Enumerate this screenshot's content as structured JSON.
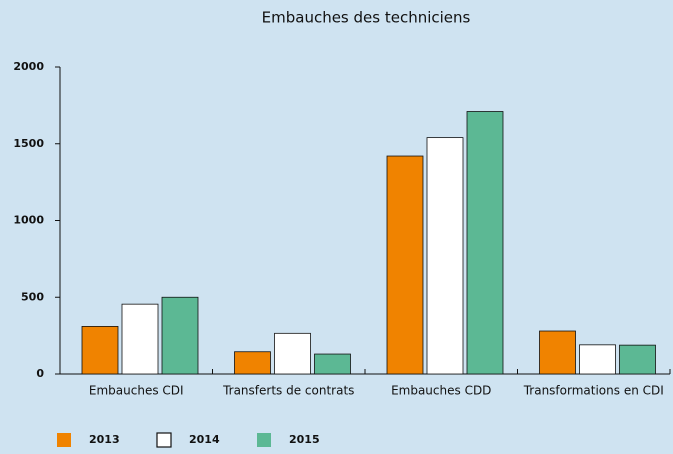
{
  "chart_data": {
    "type": "bar",
    "title": "Embauches des techniciens",
    "categories": [
      "Embauches CDI",
      "Transferts de contrats",
      "Embauches CDD",
      "Transformations en CDI"
    ],
    "series": [
      {
        "name": "2013",
        "color": "#f08300",
        "values": [
          310,
          145,
          1420,
          280
        ]
      },
      {
        "name": "2014",
        "color": "#ffffff",
        "values": [
          455,
          265,
          1540,
          190
        ]
      },
      {
        "name": "2015",
        "color": "#5cb894",
        "values": [
          500,
          130,
          1710,
          188
        ]
      }
    ],
    "ylim": [
      0,
      2000
    ],
    "yticks": [
      0,
      500,
      1000,
      1500,
      2000
    ],
    "grid": false,
    "legend": "bottom"
  }
}
